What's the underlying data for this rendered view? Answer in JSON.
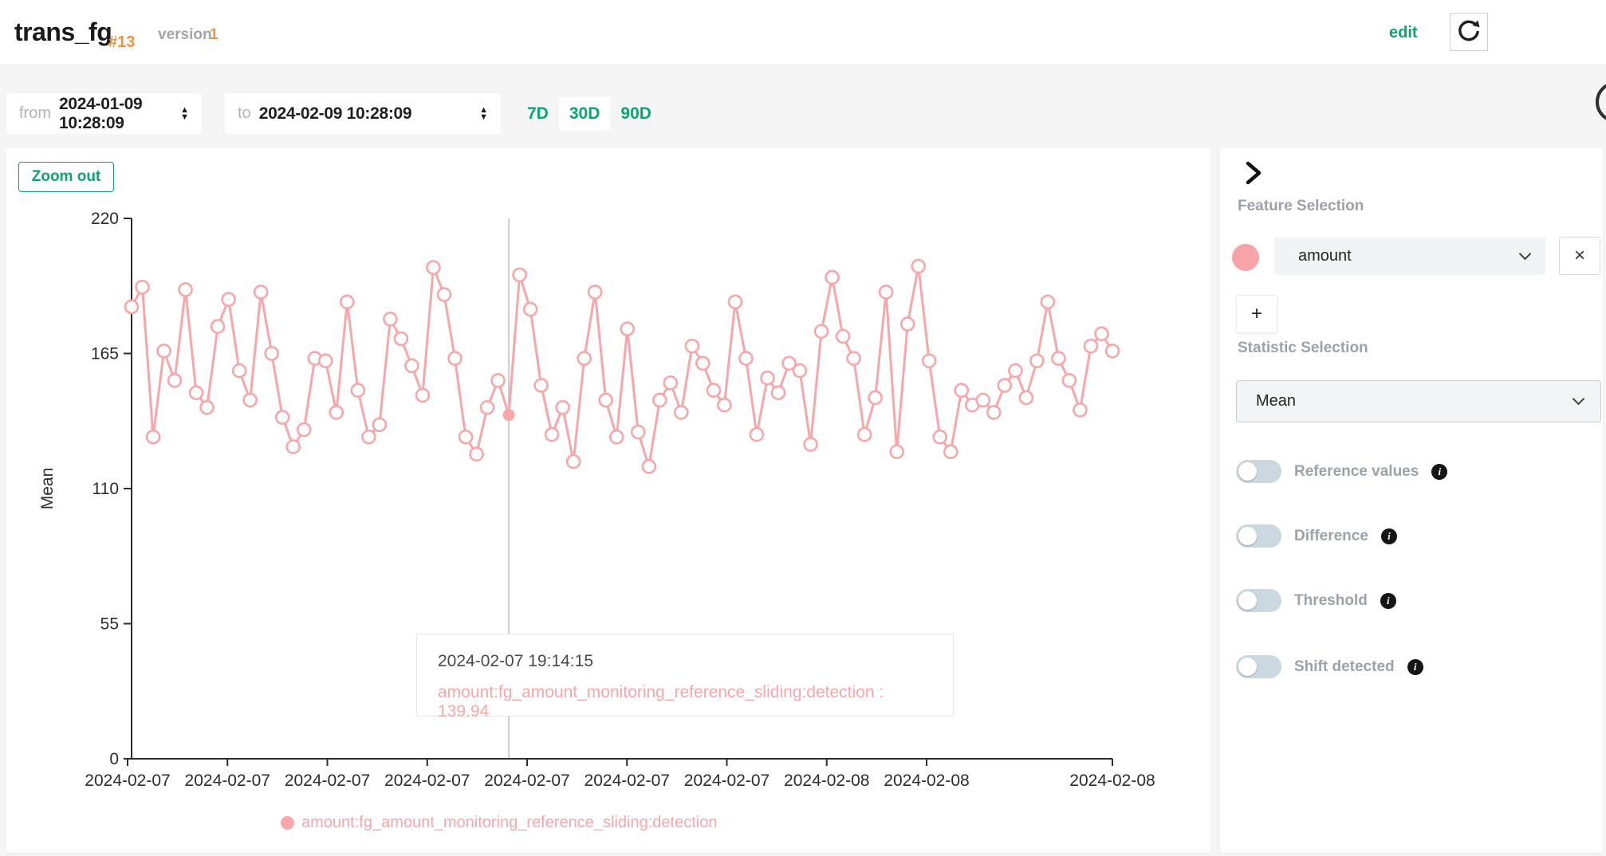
{
  "header": {
    "title": "trans_fg",
    "id_badge": "#13",
    "version_label": "version",
    "version_value": "1",
    "edit_label": "edit"
  },
  "filters": {
    "from_label": "from",
    "from_value": "2024-01-09 10:28:09",
    "to_label": "to",
    "to_value": "2024-02-09 10:28:09",
    "range_options": [
      "7D",
      "30D",
      "90D"
    ],
    "selected_range": "30D"
  },
  "chart": {
    "zoom_out_label": "Zoom out",
    "tooltip": {
      "timestamp": "2024-02-07 19:14:15",
      "text": "amount:fg_amount_monitoring_reference_sliding:detection : 139.94"
    },
    "legend_label": "amount:fg_amount_monitoring_reference_sliding:detection"
  },
  "chart_data": {
    "type": "line",
    "ylabel": "Mean",
    "ylim": [
      0,
      220
    ],
    "y_ticks": [
      0,
      55,
      110,
      165,
      220
    ],
    "x_tick_labels": [
      "2024-02-07",
      "2024-02-07",
      "2024-02-07",
      "2024-02-07",
      "2024-02-07",
      "2024-02-07",
      "2024-02-07",
      "2024-02-08",
      "2024-02-08",
      "2024-02-08"
    ],
    "grid": false,
    "legend_position": "bottom",
    "series": [
      {
        "name": "amount:fg_amount_monitoring_reference_sliding:detection",
        "values": [
          184,
          192,
          131,
          166,
          154,
          191,
          149,
          143,
          176,
          187,
          158,
          146,
          190,
          165,
          139,
          127,
          134,
          163,
          162,
          141,
          186,
          150,
          131,
          136,
          179,
          171,
          160,
          148,
          200,
          189,
          163,
          131,
          124,
          143,
          154,
          139.94,
          197,
          183,
          152,
          132,
          143,
          121,
          163,
          190,
          146,
          131,
          175,
          133,
          119,
          146,
          153,
          141,
          168,
          161,
          150,
          144,
          186,
          163,
          132,
          155,
          149,
          161,
          158,
          128,
          174,
          196,
          172,
          163,
          132,
          147,
          190,
          125,
          177,
          200.5,
          162,
          131,
          125,
          150,
          144,
          146,
          141,
          152,
          158,
          147,
          162,
          186,
          163,
          154,
          142,
          168,
          173,
          166
        ]
      }
    ],
    "highlight": {
      "index": 35,
      "value": 139.94,
      "timestamp": "2024-02-07 19:14:15"
    }
  },
  "sidebar": {
    "feature_section_label": "Feature Selection",
    "feature_selected": "amount",
    "statistic_section_label": "Statistic Selection",
    "statistic_selected": "Mean",
    "toggles": [
      {
        "label": "Reference values",
        "enabled": false
      },
      {
        "label": "Difference",
        "enabled": false
      },
      {
        "label": "Threshold",
        "enabled": false
      },
      {
        "label": "Shift detected",
        "enabled": false
      }
    ]
  },
  "icons": {
    "close": "×",
    "plus": "+",
    "info": "i",
    "spinner_up": "▲",
    "spinner_down": "▼"
  },
  "colors": {
    "accent_green": "#0ba571",
    "accent_orange": "#ef9342",
    "series_pink": "#f7a6aa",
    "toggle_track": "#ccd8df",
    "axis_dark": "#2d2d2d"
  }
}
